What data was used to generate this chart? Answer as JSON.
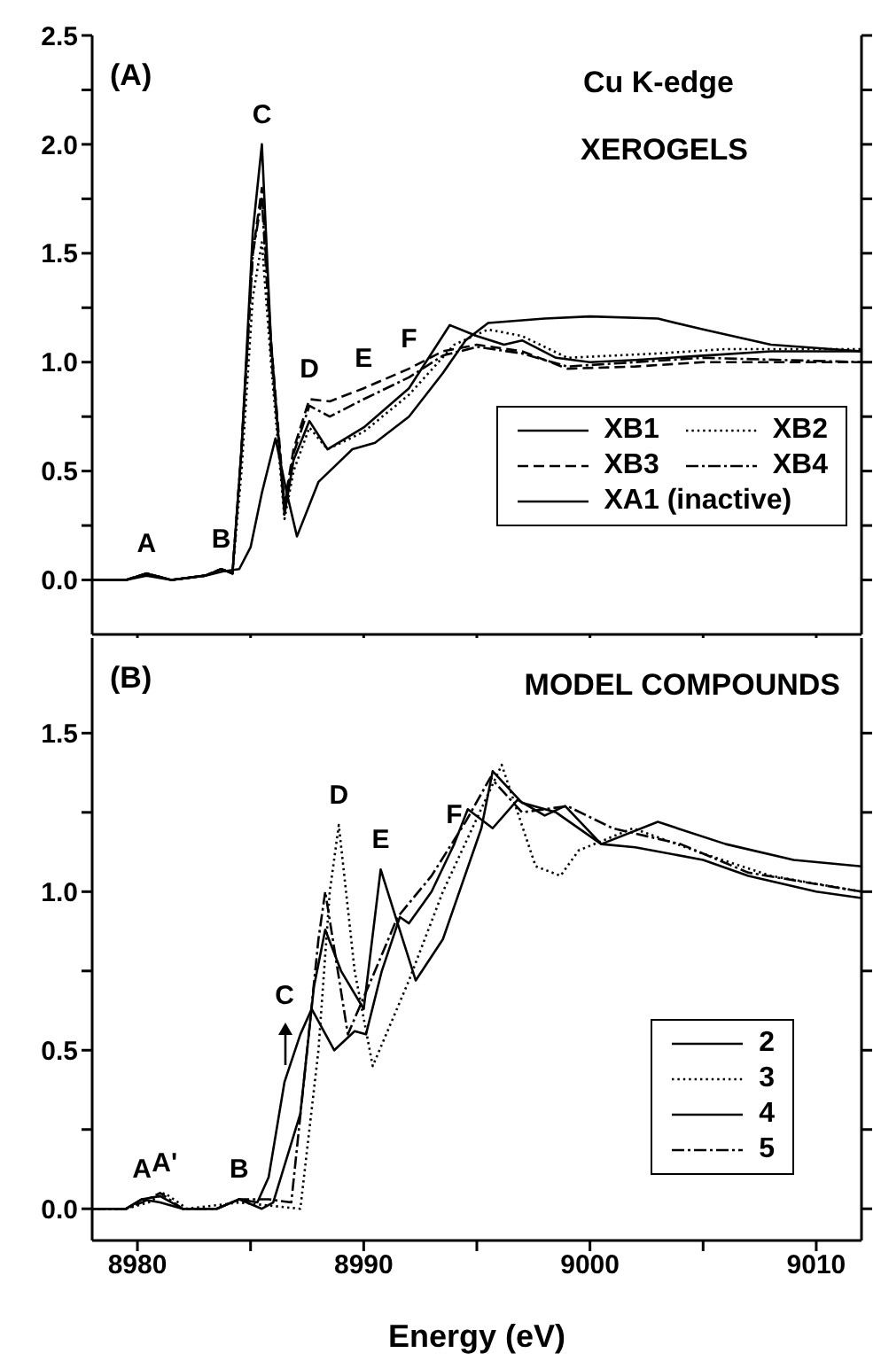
{
  "chart_data": [
    {
      "type": "line",
      "title": "(A)",
      "annotations": [
        "Cu K-edge",
        "XEROGELS",
        {
          "text": "A",
          "x": 8980.4,
          "y": 0.03
        },
        {
          "text": "B",
          "x": 8983.7,
          "y": 0.05
        },
        {
          "text": "C",
          "x": 8985.5,
          "y": 2.0
        },
        {
          "text": "D",
          "x": 8987.6,
          "y": 0.83
        },
        {
          "text": "E",
          "x": 8990,
          "y": 0.88
        },
        {
          "text": "F",
          "x": 8992,
          "y": 0.97
        }
      ],
      "xlim": [
        8978,
        9012
      ],
      "xticks": [
        8980,
        {
          "value": 8985,
          "label": null
        },
        8990,
        {
          "value": 8995,
          "label": null
        },
        9000,
        {
          "value": 9005,
          "label": null
        },
        9010
      ],
      "ylim": [
        -0.25,
        2.5
      ],
      "yticks": [
        {
          "value": 0,
          "label": "0.0"
        },
        {
          "value": 0.25,
          "label": null
        },
        {
          "value": 0.5,
          "label": "0.5"
        },
        {
          "value": 0.75,
          "label": null
        },
        {
          "value": 1,
          "label": "1.0"
        },
        {
          "value": 1.25,
          "label": null
        },
        {
          "value": 1.5,
          "label": "1.5"
        },
        {
          "value": 1.75,
          "label": null
        },
        {
          "value": 2,
          "label": "2.0"
        },
        {
          "value": 2.25,
          "label": null
        },
        {
          "value": 2.5,
          "label": "2.5"
        }
      ],
      "tick_labels": "y",
      "grid": false,
      "legend": "bottom right",
      "marker": "none",
      "series": [
        {
          "name": "XB1",
          "color": "#000000",
          "line_style": "solid",
          "x": [
            8978,
            8979.5,
            8980.4,
            8981.5,
            8983,
            8983.7,
            8984.2,
            8984.6,
            8985.1,
            8985.5,
            8985.9,
            8986.5,
            8986.9,
            8987.6,
            8988.4,
            8990,
            8992,
            8993.8,
            8995,
            8996.2,
            8997,
            8998.5,
            9000,
            9002,
            9005,
            9008,
            9012
          ],
          "values": [
            0,
            0,
            0.03,
            0,
            0.02,
            0.05,
            0.03,
            0.6,
            1.6,
            2.0,
            1.1,
            0.3,
            0.55,
            0.73,
            0.6,
            0.7,
            0.88,
            1.17,
            1.12,
            1.08,
            1.1,
            1.02,
            1.0,
            1.01,
            1.03,
            1.05,
            1.05
          ]
        },
        {
          "name": "XB2",
          "color": "#000000",
          "line_style": "dotted",
          "x": [
            8978,
            8979.5,
            8980.4,
            8981.5,
            8983,
            8983.7,
            8984.2,
            8984.6,
            8985.1,
            8985.5,
            8985.9,
            8986.5,
            8986.9,
            8987.6,
            8988.4,
            8990,
            8992,
            8994,
            8995.5,
            8997,
            8999,
            9003,
            9006,
            9012
          ],
          "values": [
            0,
            0,
            0.03,
            0,
            0.02,
            0.05,
            0.03,
            0.5,
            1.3,
            1.55,
            1.0,
            0.28,
            0.5,
            0.7,
            0.6,
            0.68,
            0.85,
            1.08,
            1.15,
            1.12,
            1.02,
            1.04,
            1.06,
            1.06
          ]
        },
        {
          "name": "XB3",
          "color": "#000000",
          "line_style": "dashed",
          "x": [
            8978,
            8979.5,
            8980.4,
            8981.5,
            8983,
            8983.7,
            8984.2,
            8984.6,
            8985.1,
            8985.5,
            8985.9,
            8986.5,
            8986.9,
            8987.6,
            8988.5,
            8990,
            8992,
            8993.5,
            8995,
            8997,
            8999,
            9002,
            9005,
            9012
          ],
          "values": [
            0,
            0,
            0.03,
            0,
            0.02,
            0.05,
            0.03,
            0.6,
            1.5,
            1.8,
            1.1,
            0.35,
            0.6,
            0.83,
            0.82,
            0.88,
            0.97,
            1.05,
            1.08,
            1.05,
            0.97,
            0.98,
            1.0,
            1.0
          ]
        },
        {
          "name": "XB4",
          "color": "#000000",
          "line_style": "dashdot",
          "x": [
            8978,
            8979.5,
            8980.4,
            8981.5,
            8983,
            8983.7,
            8984.2,
            8984.6,
            8985.1,
            8985.5,
            8985.9,
            8986.5,
            8986.9,
            8987.6,
            8988.5,
            8990,
            8992,
            8993.5,
            8995,
            8997,
            8999,
            9002,
            9005,
            9012
          ],
          "values": [
            0,
            0,
            0.03,
            0,
            0.02,
            0.05,
            0.03,
            0.6,
            1.5,
            1.75,
            1.05,
            0.33,
            0.58,
            0.8,
            0.75,
            0.83,
            0.93,
            1.03,
            1.07,
            1.04,
            0.98,
            1.0,
            1.02,
            1.0
          ]
        },
        {
          "name": "XA1 (inactive)",
          "color": "#000000",
          "line_style": "solid",
          "x": [
            8978,
            8979.5,
            8980.4,
            8981.5,
            8983,
            8983.8,
            8984.5,
            8985,
            8985.5,
            8986.1,
            8986.6,
            8987.05,
            8988,
            8989.5,
            8990.5,
            8992,
            8993.5,
            8994.5,
            8995.5,
            8998,
            9000,
            9003,
            9005,
            9008,
            9012
          ],
          "values": [
            0,
            0,
            0.02,
            0,
            0.02,
            0.04,
            0.05,
            0.15,
            0.4,
            0.65,
            0.4,
            0.2,
            0.45,
            0.6,
            0.63,
            0.75,
            0.95,
            1.1,
            1.18,
            1.2,
            1.21,
            1.2,
            1.15,
            1.08,
            1.05
          ]
        }
      ]
    },
    {
      "type": "line",
      "title": "(B)",
      "xlabel": "Energy (eV)",
      "annotations": [
        "MODEL COMPOUNDS",
        {
          "text": "A",
          "x": 8980.2,
          "y": 0.03
        },
        {
          "text": "A'",
          "x": 8981.2,
          "y": 0.05
        },
        {
          "text": "B",
          "x": 8984.5,
          "y": 0.03
        },
        {
          "text": "C",
          "x": 8986.5,
          "y": 0.4
        },
        {
          "text": "D",
          "x": 8988.9,
          "y": 1.21
        },
        {
          "text": "E",
          "x": 8990.75,
          "y": 1.07
        },
        {
          "text": "F",
          "x": 8994,
          "y": 1.15
        }
      ],
      "xlim": [
        8978,
        9012
      ],
      "xticks": [
        8980,
        {
          "value": 8985,
          "label": null
        },
        8990,
        {
          "value": 8995,
          "label": null
        },
        9000,
        {
          "value": 9005,
          "label": null
        },
        9010
      ],
      "ylim": [
        -0.1,
        1.8
      ],
      "yticks": [
        {
          "value": 0,
          "label": "0.0"
        },
        {
          "value": 0.25,
          "label": null
        },
        {
          "value": 0.5,
          "label": "0.5"
        },
        {
          "value": 0.75,
          "label": null
        },
        {
          "value": 1,
          "label": "1.0"
        },
        {
          "value": 1.25,
          "label": null
        },
        {
          "value": 1.5,
          "label": "1.5"
        }
      ],
      "grid": false,
      "legend": "right",
      "marker": "none",
      "series": [
        {
          "name": "2",
          "color": "#000000",
          "line_style": "solid",
          "x": [
            8978,
            8979.5,
            8980.2,
            8981,
            8982,
            8983.5,
            8984.5,
            8985.5,
            8986,
            8987.2,
            8987.8,
            8988.3,
            8989,
            8990,
            8990.75,
            8991.5,
            8992.3,
            8993.5,
            8995.2,
            8995.7,
            8997,
            8998.5,
            9000.5,
            9003,
            9006,
            9009,
            9012
          ],
          "values": [
            0,
            0,
            0.03,
            0.02,
            0,
            0,
            0.03,
            0,
            0.02,
            0.3,
            0.7,
            0.88,
            0.75,
            0.63,
            1.07,
            0.9,
            0.72,
            0.85,
            1.2,
            1.38,
            1.28,
            1.25,
            1.15,
            1.22,
            1.15,
            1.1,
            1.08
          ]
        },
        {
          "name": "3",
          "color": "#000000",
          "line_style": "dotted",
          "x": [
            8978,
            8979.5,
            8980.5,
            8981.2,
            8982.2,
            8984.5,
            8987.2,
            8988,
            8988.5,
            8988.9,
            8989.6,
            8990.4,
            8992,
            8993.5,
            8994.8,
            8996.1,
            8997.6,
            8998.7,
            8999.5,
            9001.9,
            9005,
            9008,
            9012
          ],
          "values": [
            0,
            0,
            0.02,
            0.05,
            0,
            0.02,
            0,
            0.5,
            1.0,
            1.21,
            0.75,
            0.45,
            0.72,
            1.0,
            1.2,
            1.4,
            1.08,
            1.05,
            1.13,
            1.2,
            1.12,
            1.05,
            1.0
          ]
        },
        {
          "name": "4",
          "color": "#000000",
          "line_style": "solid",
          "x": [
            8978,
            8979.5,
            8980.2,
            8981,
            8982,
            8983.5,
            8984.5,
            8985.3,
            8985.8,
            8986.5,
            8987.2,
            8987.7,
            8988.7,
            8989.6,
            8990.1,
            8990.8,
            8991.6,
            8992,
            8993,
            8994,
            8994.6,
            8995.7,
            8996.8,
            8998,
            8998.9,
            9000.5,
            9002,
            9005,
            9007,
            9010,
            9012
          ],
          "values": [
            0,
            0,
            0.03,
            0.04,
            0,
            0,
            0.03,
            0.02,
            0.1,
            0.4,
            0.55,
            0.63,
            0.5,
            0.56,
            0.55,
            0.75,
            0.92,
            0.9,
            1.0,
            1.15,
            1.26,
            1.2,
            1.29,
            1.24,
            1.27,
            1.15,
            1.14,
            1.1,
            1.05,
            1.0,
            0.98
          ]
        },
        {
          "name": "5",
          "color": "#000000",
          "line_style": "dashdot",
          "x": [
            8978,
            8979.5,
            8980.2,
            8981,
            8982,
            8983.5,
            8984.5,
            8985.8,
            8986.8,
            8987.5,
            8988,
            8988.3,
            8989.3,
            8990.5,
            8991.5,
            8993,
            8994.5,
            8995.6,
            8997,
            8999,
            9001,
            9004,
            9007,
            9012
          ],
          "values": [
            0,
            0,
            0.02,
            0.05,
            0,
            0,
            0.03,
            0.03,
            0.02,
            0.5,
            0.85,
            1.0,
            0.55,
            0.75,
            0.92,
            1.05,
            1.22,
            1.36,
            1.25,
            1.27,
            1.2,
            1.15,
            1.06,
            1.0
          ]
        }
      ]
    }
  ]
}
